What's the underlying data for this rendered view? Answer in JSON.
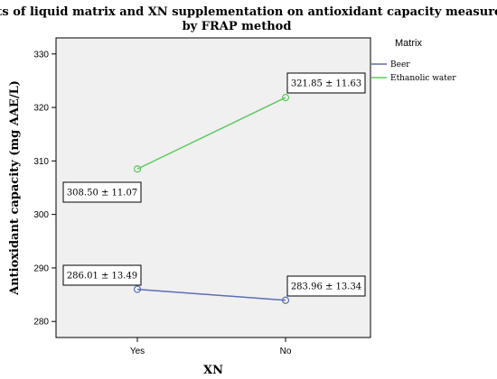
{
  "chart_data": {
    "type": "line",
    "title_line1": "Effects of liquid matrix and XN supplementation on antioxidant capacity measured",
    "title_line2": "by FRAP method",
    "xlabel": "XN",
    "ylabel": "Antioxidant capacity (mg AAE/L)",
    "categories": [
      "Yes",
      "No"
    ],
    "ylim": [
      277,
      333
    ],
    "yticks": [
      280,
      290,
      300,
      310,
      320,
      330
    ],
    "grid": false,
    "legend": {
      "title": "Matrix",
      "placement": "right"
    },
    "series": [
      {
        "name": "Beer",
        "color": "#5b6fb5",
        "values": [
          286.01,
          283.96
        ],
        "labels": [
          "286.01 ± 13.49",
          "283.96 ± 13.34"
        ]
      },
      {
        "name": "Ethanolic water",
        "color": "#5cc95c",
        "values": [
          308.5,
          321.85
        ],
        "labels": [
          "308.50 ± 11.07",
          "321.85 ± 11.63"
        ]
      }
    ],
    "plot_background": "#f0f0f0"
  }
}
